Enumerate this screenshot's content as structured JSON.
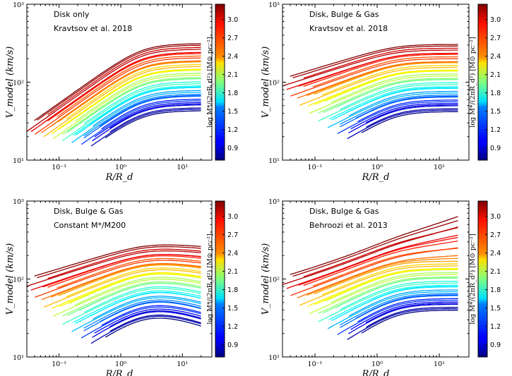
{
  "chart_data": [
    {
      "type": "line",
      "annotation": [
        "Disk only",
        "Kravtsov et al. 2018"
      ],
      "xlabel": "R/R_d",
      "ylabel": "V_model (km/s)",
      "xscale": "log",
      "yscale": "log",
      "xlim": [
        0.03,
        30
      ],
      "ylim": [
        10,
        1000
      ],
      "xticks": [
        "10⁻¹",
        "10⁰",
        "10¹"
      ],
      "yticks": [
        "10¹",
        "10²",
        "10³"
      ],
      "colorbar": {
        "label": "log M*/(2πR_d²) [M⊙ pc⁻²]",
        "ticks": [
          "0.9",
          "1.2",
          "1.5",
          "1.8",
          "2.1",
          "2.4",
          "2.7",
          "3.0"
        ],
        "range": [
          0.7,
          3.25
        ],
        "colormap": "jet"
      },
      "series_summary": {
        "count": 40,
        "r_end": 20,
        "v_peak_range_kms": [
          42,
          300
        ],
        "v_peak_at_R_over_Rd": 2.2,
        "inner_slope": "rising ~R^0.5",
        "outer": "flat"
      }
    },
    {
      "type": "line",
      "annotation": [
        "Disk, Bulge & Gas",
        "Kravtsov et al. 2018"
      ],
      "xlabel": "R/R_d",
      "ylabel": "V_model (km/s)",
      "xscale": "log",
      "yscale": "log",
      "xlim": [
        0.03,
        30
      ],
      "ylim": [
        10,
        1000
      ],
      "xticks": [
        "10⁻¹",
        "10⁰",
        "10¹"
      ],
      "yticks": [
        "10¹",
        "10²",
        "10³"
      ],
      "colorbar": {
        "label": "log M*/(2πR_d²) [M⊙ pc⁻²]",
        "ticks": [
          "0.9",
          "1.2",
          "1.5",
          "1.8",
          "2.1",
          "2.4",
          "2.7",
          "3.0"
        ],
        "range": [
          0.7,
          3.25
        ],
        "colormap": "jet"
      },
      "series_summary": {
        "count": 40,
        "r_end": 20,
        "v_peak_range_kms": [
          45,
          300
        ],
        "inner_slope": "shallow rise",
        "outer": "flat"
      }
    },
    {
      "type": "line",
      "annotation": [
        "Disk, Bulge & Gas",
        "Constant M*/M200"
      ],
      "xlabel": "R/R_d",
      "ylabel": "V_model (km/s)",
      "xscale": "log",
      "yscale": "log",
      "xlim": [
        0.03,
        30
      ],
      "ylim": [
        10,
        1000
      ],
      "xticks": [
        "10⁻¹",
        "10⁰",
        "10¹"
      ],
      "yticks": [
        "10¹",
        "10²",
        "10³"
      ],
      "colorbar": {
        "label": "log M*/(2πR_d²) [M⊙ pc⁻²]",
        "ticks": [
          "0.9",
          "1.2",
          "1.5",
          "1.8",
          "2.1",
          "2.4",
          "2.7",
          "3.0"
        ],
        "range": [
          0.7,
          3.25
        ],
        "colormap": "jet"
      },
      "series_summary": {
        "count": 40,
        "r_end": 20,
        "v_peak_range_kms": [
          25,
          270
        ],
        "inner_slope": "rising",
        "outer": "declining"
      }
    },
    {
      "type": "line",
      "annotation": [
        "Disk, Bulge & Gas",
        "Behroozi et al. 2013"
      ],
      "xlabel": "R/R_d",
      "ylabel": "V_model (km/s)",
      "xscale": "log",
      "yscale": "log",
      "xlim": [
        0.03,
        30
      ],
      "ylim": [
        10,
        1000
      ],
      "xticks": [
        "10⁻¹",
        "10⁰",
        "10¹"
      ],
      "yticks": [
        "10¹",
        "10²",
        "10³"
      ],
      "colorbar": {
        "label": "log M*/(2πR_d²) [M⊙ pc⁻²]",
        "ticks": [
          "0.9",
          "1.2",
          "1.5",
          "1.8",
          "2.1",
          "2.4",
          "2.7",
          "3.0"
        ],
        "range": [
          0.7,
          3.25
        ],
        "colormap": "jet"
      },
      "series_summary": {
        "count": 40,
        "r_end": 20,
        "v_end_range_kms": [
          40,
          650
        ],
        "inner_slope": "rising",
        "outer": "rising for high surface density"
      }
    }
  ]
}
